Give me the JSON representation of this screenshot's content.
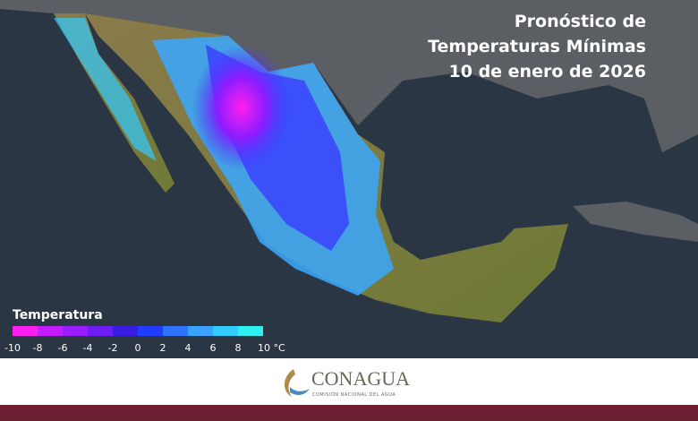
{
  "header": {
    "title_lines": [
      "Pronóstico de",
      "Temperaturas Mínimas",
      "10 de enero de 2026"
    ]
  },
  "legend": {
    "title": "Temperatura",
    "colors": [
      "#ff1ff0",
      "#c41cff",
      "#9a1cff",
      "#6e1cf5",
      "#3a1ce0",
      "#1f3cff",
      "#2f74ff",
      "#39a4ff",
      "#33ccff",
      "#2ff0f0"
    ],
    "ticks": [
      -10,
      -8,
      -6,
      -4,
      -2,
      0,
      2,
      4,
      6,
      8,
      {
        "value": 10,
        "label": "10 °C"
      }
    ]
  },
  "footer": {
    "brand": "CONAGUA",
    "subtitle": "COMISIÓN NACIONAL DEL AGUA"
  }
}
